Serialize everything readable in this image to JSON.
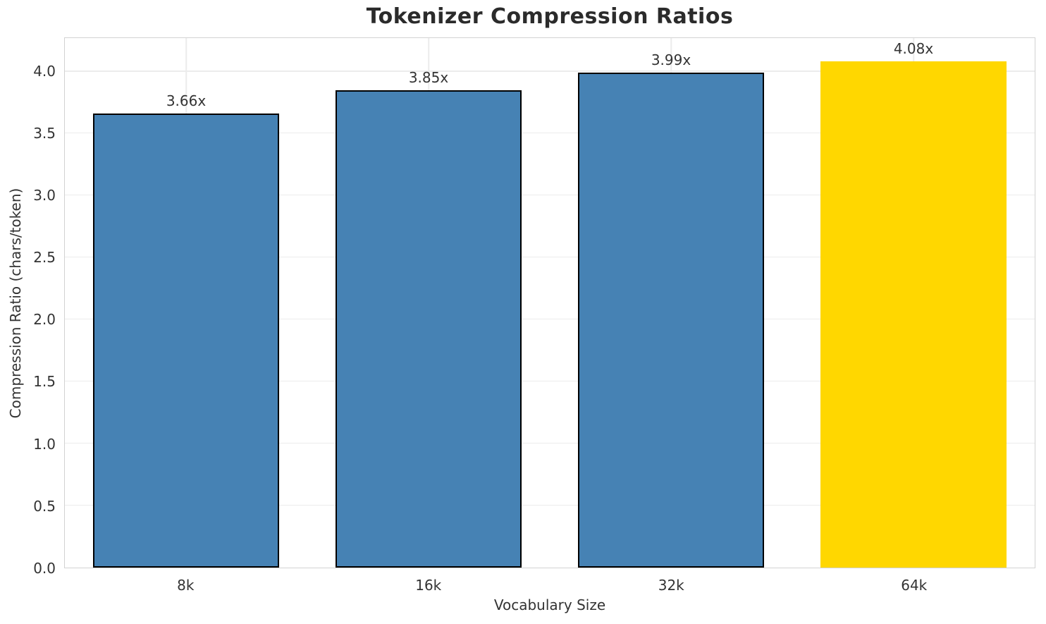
{
  "chart_data": {
    "type": "bar",
    "title": "Tokenizer Compression Ratios",
    "xlabel": "Vocabulary Size",
    "ylabel": "Compression Ratio (chars/token)",
    "categories": [
      "8k",
      "16k",
      "32k",
      "64k"
    ],
    "values": [
      3.66,
      3.85,
      3.99,
      4.08
    ],
    "bar_labels": [
      "3.66x",
      "3.85x",
      "3.99x",
      "4.08x"
    ],
    "bar_colors": [
      "#4682B4",
      "#4682B4",
      "#4682B4",
      "#FFD700"
    ],
    "bar_edge_colors": [
      "#000000",
      "#000000",
      "#000000",
      "none"
    ],
    "highlighted_category": "64k",
    "ylim": [
      0,
      4.27
    ],
    "yticks": [
      0.0,
      0.5,
      1.0,
      1.5,
      2.0,
      2.5,
      3.0,
      3.5,
      4.0
    ],
    "ytick_labels": [
      "0.0",
      "0.5",
      "1.0",
      "1.5",
      "2.0",
      "2.5",
      "3.0",
      "3.5",
      "4.0"
    ],
    "grid": true,
    "legend_position": "none"
  },
  "style": {
    "blue": "#4682B4",
    "gold": "#FFD700",
    "grid_color": "#ececec",
    "spine_color": "#d2d2d2",
    "title_color": "#2b2b2b",
    "tick_color": "#333333"
  }
}
